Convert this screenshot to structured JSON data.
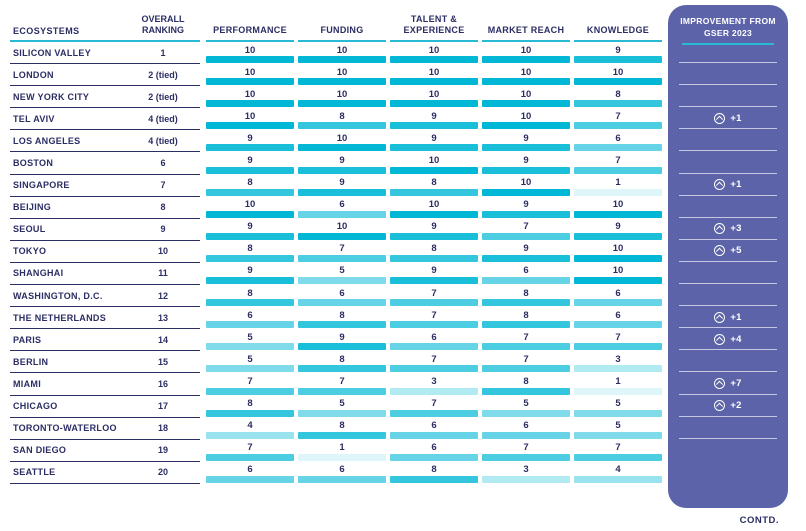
{
  "table": {
    "headers": {
      "ecosystems": "ECOSYSTEMS",
      "overall_ranking": "OVERALL RANKING",
      "performance": "PERFORMANCE",
      "funding": "FUNDING",
      "talent_experience": "TALENT & EXPERIENCE",
      "market_reach": "MARKET REACH",
      "knowledge": "KNOWLEDGE"
    },
    "rows": [
      {
        "ecosystem": "SILICON VALLEY",
        "ranking": "1",
        "scores": [
          10,
          10,
          10,
          10,
          9
        ],
        "improvement": null
      },
      {
        "ecosystem": "LONDON",
        "ranking": "2 (tied)",
        "scores": [
          10,
          10,
          10,
          10,
          10
        ],
        "improvement": null
      },
      {
        "ecosystem": "NEW YORK CITY",
        "ranking": "2 (tied)",
        "scores": [
          10,
          10,
          10,
          10,
          8
        ],
        "improvement": null
      },
      {
        "ecosystem": "TEL AVIV",
        "ranking": "4 (tied)",
        "scores": [
          10,
          8,
          9,
          10,
          7
        ],
        "improvement": "+1"
      },
      {
        "ecosystem": "LOS ANGELES",
        "ranking": "4 (tied)",
        "scores": [
          9,
          10,
          9,
          9,
          6
        ],
        "improvement": null
      },
      {
        "ecosystem": "BOSTON",
        "ranking": "6",
        "scores": [
          9,
          9,
          10,
          9,
          7
        ],
        "improvement": null
      },
      {
        "ecosystem": "SINGAPORE",
        "ranking": "7",
        "scores": [
          8,
          9,
          8,
          10,
          1
        ],
        "improvement": "+1"
      },
      {
        "ecosystem": "BEIJING",
        "ranking": "8",
        "scores": [
          10,
          6,
          10,
          9,
          10
        ],
        "improvement": null
      },
      {
        "ecosystem": "SEOUL",
        "ranking": "9",
        "scores": [
          9,
          10,
          9,
          7,
          9
        ],
        "improvement": "+3"
      },
      {
        "ecosystem": "TOKYO",
        "ranking": "10",
        "scores": [
          8,
          7,
          8,
          9,
          10
        ],
        "improvement": "+5"
      },
      {
        "ecosystem": "SHANGHAI",
        "ranking": "11",
        "scores": [
          9,
          5,
          9,
          6,
          10
        ],
        "improvement": null
      },
      {
        "ecosystem": "WASHINGTON, D.C.",
        "ranking": "12",
        "scores": [
          8,
          6,
          7,
          8,
          6
        ],
        "improvement": null
      },
      {
        "ecosystem": "THE NETHERLANDS",
        "ranking": "13",
        "scores": [
          6,
          8,
          7,
          8,
          6
        ],
        "improvement": "+1"
      },
      {
        "ecosystem": "PARIS",
        "ranking": "14",
        "scores": [
          5,
          9,
          6,
          7,
          7
        ],
        "improvement": "+4"
      },
      {
        "ecosystem": "BERLIN",
        "ranking": "15",
        "scores": [
          5,
          8,
          7,
          7,
          3
        ],
        "improvement": null
      },
      {
        "ecosystem": "MIAMI",
        "ranking": "16",
        "scores": [
          7,
          7,
          3,
          8,
          1
        ],
        "improvement": "+7"
      },
      {
        "ecosystem": "CHICAGO",
        "ranking": "17",
        "scores": [
          8,
          5,
          7,
          5,
          5
        ],
        "improvement": "+2"
      },
      {
        "ecosystem": "TORONTO-WATERLOO",
        "ranking": "18",
        "scores": [
          4,
          8,
          6,
          6,
          5
        ],
        "improvement": null
      },
      {
        "ecosystem": "SAN DIEGO",
        "ranking": "19",
        "scores": [
          7,
          1,
          6,
          7,
          7
        ],
        "improvement": null
      },
      {
        "ecosystem": "SEATTLE",
        "ranking": "20",
        "scores": [
          6,
          6,
          8,
          3,
          4
        ],
        "improvement": null
      }
    ]
  },
  "improvement_panel": {
    "title": "IMPROVEMENT FROM GSER 2023",
    "icon": "chevron-up-circle-icon"
  },
  "footer": {
    "contd": "CONTD."
  },
  "colors": {
    "accent_teal": "#00b8d5",
    "header_underline_teal": "#29bad5",
    "navy_text": "#2b2d63",
    "panel_purple": "#5c63a8",
    "bar_base_rgb": "0,184,213"
  },
  "chart_data": {
    "type": "table",
    "columns": [
      "ECOSYSTEMS",
      "OVERALL RANKING",
      "PERFORMANCE",
      "FUNDING",
      "TALENT & EXPERIENCE",
      "MARKET REACH",
      "KNOWLEDGE",
      "IMPROVEMENT FROM GSER 2023"
    ],
    "rows": [
      [
        "SILICON VALLEY",
        "1",
        10,
        10,
        10,
        10,
        9,
        ""
      ],
      [
        "LONDON",
        "2 (tied)",
        10,
        10,
        10,
        10,
        10,
        ""
      ],
      [
        "NEW YORK CITY",
        "2 (tied)",
        10,
        10,
        10,
        10,
        8,
        ""
      ],
      [
        "TEL AVIV",
        "4 (tied)",
        10,
        8,
        9,
        10,
        7,
        "+1"
      ],
      [
        "LOS ANGELES",
        "4 (tied)",
        9,
        10,
        9,
        9,
        6,
        ""
      ],
      [
        "BOSTON",
        "6",
        9,
        9,
        10,
        9,
        7,
        ""
      ],
      [
        "SINGAPORE",
        "7",
        8,
        9,
        8,
        10,
        1,
        "+1"
      ],
      [
        "BEIJING",
        "8",
        10,
        6,
        10,
        9,
        10,
        ""
      ],
      [
        "SEOUL",
        "9",
        9,
        10,
        9,
        7,
        9,
        "+3"
      ],
      [
        "TOKYO",
        "10",
        8,
        7,
        8,
        9,
        10,
        "+5"
      ],
      [
        "SHANGHAI",
        "11",
        9,
        5,
        9,
        6,
        10,
        ""
      ],
      [
        "WASHINGTON, D.C.",
        "12",
        8,
        6,
        7,
        8,
        6,
        ""
      ],
      [
        "THE NETHERLANDS",
        "13",
        6,
        8,
        7,
        8,
        6,
        "+1"
      ],
      [
        "PARIS",
        "14",
        5,
        9,
        6,
        7,
        7,
        "+4"
      ],
      [
        "BERLIN",
        "15",
        5,
        8,
        7,
        7,
        3,
        ""
      ],
      [
        "MIAMI",
        "16",
        7,
        7,
        3,
        8,
        1,
        "+7"
      ],
      [
        "CHICAGO",
        "17",
        8,
        5,
        7,
        5,
        5,
        "+2"
      ],
      [
        "TORONTO-WATERLOO",
        "18",
        4,
        8,
        6,
        6,
        5,
        ""
      ],
      [
        "SAN DIEGO",
        "19",
        7,
        1,
        6,
        7,
        7,
        ""
      ],
      [
        "SEATTLE",
        "20",
        6,
        6,
        8,
        3,
        4,
        ""
      ]
    ],
    "score_scale": [
      1,
      10
    ],
    "legend_position": "none",
    "grid": "row-separators",
    "encoding_note": "score cell bar color intensity is proportional to score value (1 = palest teal, 10 = full teal)"
  }
}
